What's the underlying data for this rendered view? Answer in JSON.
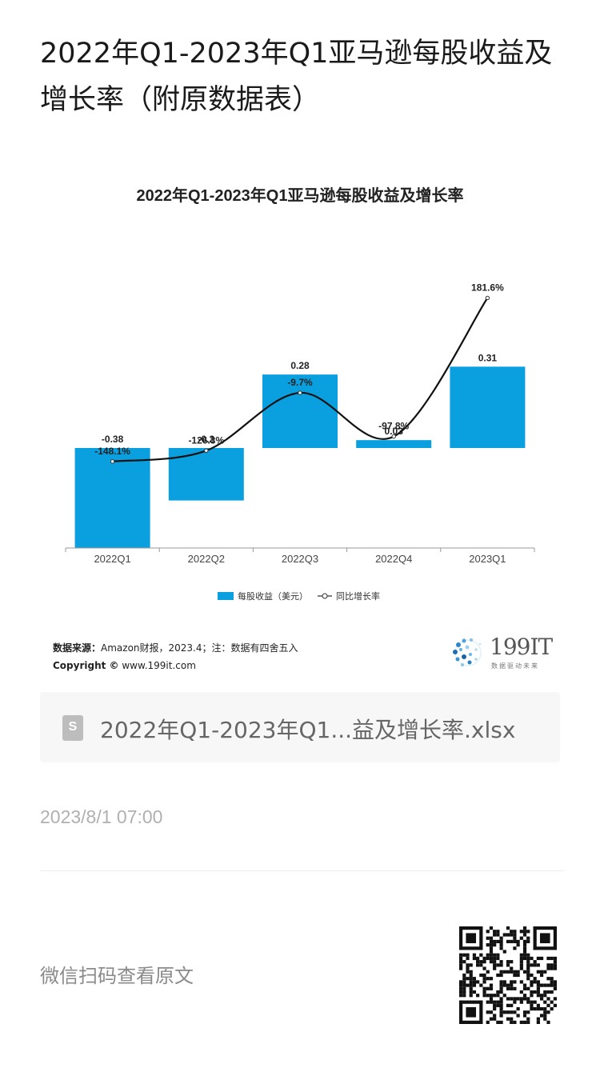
{
  "article": {
    "title": "2022年Q1-2023年Q1亚马逊每股收益及增长率（附原数据表）"
  },
  "chart_data": {
    "type": "bar",
    "title": "2022年Q1-2023年Q1亚马逊每股收益及增长率",
    "categories": [
      "2022Q1",
      "2022Q2",
      "2022Q3",
      "2022Q4",
      "2023Q1"
    ],
    "series": [
      {
        "name": "每股收益（美元）",
        "type": "bar",
        "color": "#0aa0e0",
        "values": [
          -0.38,
          -0.2,
          0.28,
          0.03,
          0.31
        ],
        "labels": [
          "-0.38",
          "-0.2",
          "0.28",
          "0.03",
          "0.31"
        ]
      },
      {
        "name": "同比增长率",
        "type": "line",
        "color": "#111111",
        "values": [
          -148.1,
          -126.3,
          -9.7,
          -97.8,
          181.6
        ],
        "labels": [
          "-148.1%",
          "-126.3%",
          "-9.7%",
          "-97.8%",
          "181.6%"
        ]
      }
    ],
    "legend_position": "bottom",
    "grid": false
  },
  "source": {
    "label": "数据来源：",
    "text": "Amazon财报，2023.4；注：数据有四舍五入",
    "copyright_label": "Copyright ©",
    "copyright_text": " www.199it.com"
  },
  "logo": {
    "name": "199IT",
    "tagline": "数据驱动未来"
  },
  "file": {
    "icon": "spreadsheet-icon",
    "icon_letter": "S",
    "name": "2022年Q1-2023年Q1...益及增长率.xlsx"
  },
  "timestamp": "2023/8/1 07:00",
  "qr": {
    "caption": "微信扫码查看原文"
  }
}
